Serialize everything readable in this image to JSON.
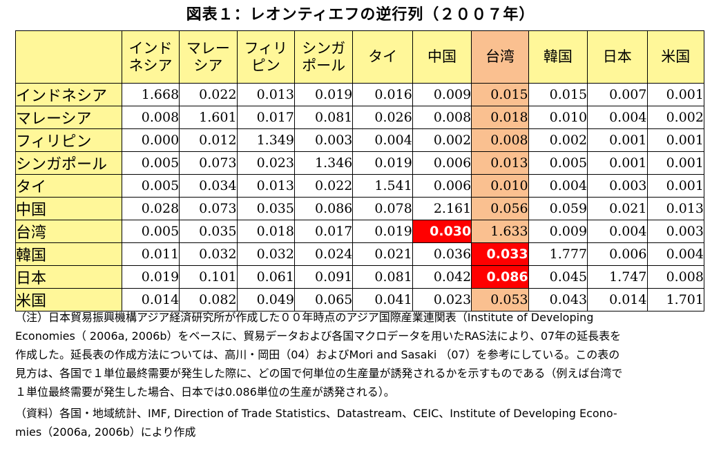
{
  "title": "図表１：レオンティエフの逆行列（２００７年）",
  "column_headers": [
    "インド\nネシア",
    "マレー\nシア",
    "フィリ\nピン",
    "シンガ\nポール",
    "タイ",
    "中国",
    "台湾",
    "韓国",
    "日本",
    "米国"
  ],
  "highlight_color": "#fac090",
  "header_color": "#fff799",
  "emphasis_color": "#ff0000",
  "rows": [
    {
      "label": "インドネシア",
      "values": [
        "1.668",
        "0.022",
        "0.013",
        "0.019",
        "0.016",
        "0.009",
        "0.015",
        "0.015",
        "0.007",
        "0.001"
      ]
    },
    {
      "label": "マレーシア",
      "values": [
        "0.008",
        "1.601",
        "0.017",
        "0.081",
        "0.026",
        "0.008",
        "0.018",
        "0.010",
        "0.004",
        "0.002"
      ]
    },
    {
      "label": "フィリピン",
      "values": [
        "0.000",
        "0.012",
        "1.349",
        "0.003",
        "0.004",
        "0.002",
        "0.008",
        "0.002",
        "0.001",
        "0.001"
      ]
    },
    {
      "label": "シンガポール",
      "values": [
        "0.005",
        "0.073",
        "0.023",
        "1.346",
        "0.019",
        "0.006",
        "0.013",
        "0.005",
        "0.001",
        "0.001"
      ]
    },
    {
      "label": "タイ",
      "values": [
        "0.005",
        "0.034",
        "0.013",
        "0.022",
        "1.541",
        "0.006",
        "0.010",
        "0.004",
        "0.003",
        "0.001"
      ]
    },
    {
      "label": "中国",
      "values": [
        "0.028",
        "0.073",
        "0.035",
        "0.086",
        "0.078",
        "2.161",
        "0.056",
        "0.059",
        "0.021",
        "0.013"
      ]
    },
    {
      "label": "台湾",
      "values": [
        "0.005",
        "0.035",
        "0.018",
        "0.017",
        "0.019",
        "0.030",
        "1.633",
        "0.009",
        "0.004",
        "0.003"
      ]
    },
    {
      "label": "韓国",
      "values": [
        "0.011",
        "0.032",
        "0.032",
        "0.024",
        "0.021",
        "0.036",
        "0.033",
        "1.777",
        "0.006",
        "0.004"
      ]
    },
    {
      "label": "日本",
      "values": [
        "0.019",
        "0.101",
        "0.061",
        "0.091",
        "0.081",
        "0.042",
        "0.086",
        "0.045",
        "1.747",
        "0.008"
      ]
    },
    {
      "label": "米国",
      "values": [
        "0.014",
        "0.082",
        "0.049",
        "0.065",
        "0.041",
        "0.023",
        "0.053",
        "0.043",
        "0.014",
        "1.701"
      ]
    }
  ],
  "notes": {
    "note_lines": [
      "（注）日本貿易振興機構アジア経済研究所が作成した００年時点のアジア国際産業連関表（Institute of Developing",
      "Economies（ 2006a, 2006b）をベースに、貿易データおよび各国マクロデータを用いたRAS法により、07年の延長表を",
      "作成した。延長表の作成方法については、高川・岡田（04）およびMori and Sasaki （07）を参考にしている。この表の",
      "見方は、各国で１単位最終需要が発生した際に、どの国で何単位の生産量が誘発されるかを示すものである（例えば台湾で",
      "１単位最終需要が発生した場合、日本では0.086単位の生産が誘発される）。"
    ],
    "source_lines": [
      "（資料）各国・地域統計、IMF, Direction of Trade Statistics、Datastream、CEIC、Institute of Developing Econo-",
      "mies（2006a, 2006b）により作成"
    ]
  }
}
